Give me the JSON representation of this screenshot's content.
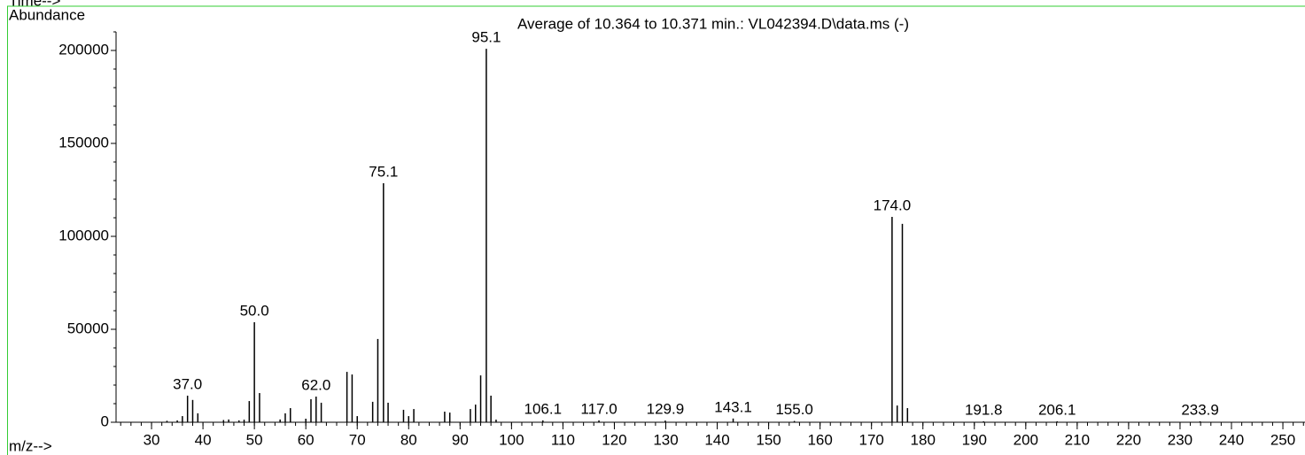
{
  "chart_data": {
    "type": "spectrum",
    "title": "Average of 10.364 to 10.371 min.: VL042394.D\\data.ms (-)",
    "top_label": "Time-->",
    "y_label": "Abundance",
    "x_label": "m/z-->",
    "color": "#000000",
    "frame_color": "#33cc33",
    "x": [
      33,
      35,
      36,
      37.0,
      38,
      39,
      44,
      45,
      47,
      48,
      49,
      50.0,
      51,
      55,
      56,
      57,
      60,
      61,
      62.0,
      63,
      68,
      69,
      70,
      73,
      74,
      75.1,
      76,
      79,
      80,
      81,
      87,
      88,
      92,
      93,
      94,
      95.1,
      96,
      97,
      106.1,
      117.0,
      129.9,
      143.1,
      155.0,
      174.0,
      175,
      176,
      177,
      191.8,
      206.1,
      233.9
    ],
    "values": [
      800,
      1000,
      3300,
      14300,
      12000,
      4800,
      1200,
      1500,
      1000,
      1400,
      11400,
      53800,
      15700,
      1500,
      4800,
      7600,
      1900,
      12400,
      13800,
      10500,
      27100,
      25700,
      3300,
      11000,
      44800,
      128600,
      10500,
      6700,
      3300,
      7100,
      5700,
      5200,
      7100,
      9500,
      25200,
      200900,
      14300,
      1400,
      1000,
      1000,
      900,
      2000,
      700,
      110500,
      9000,
      106700,
      7600,
      500,
      500,
      500
    ],
    "peak_labels": [
      {
        "x": 37.0,
        "label": "37.0"
      },
      {
        "x": 50.0,
        "label": "50.0"
      },
      {
        "x": 62.0,
        "label": "62.0"
      },
      {
        "x": 75.1,
        "label": "75.1"
      },
      {
        "x": 95.1,
        "label": "95.1"
      },
      {
        "x": 106.1,
        "label": "106.1"
      },
      {
        "x": 117.0,
        "label": "117.0"
      },
      {
        "x": 129.9,
        "label": "129.9"
      },
      {
        "x": 143.1,
        "label": "143.1"
      },
      {
        "x": 155.0,
        "label": "155.0"
      },
      {
        "x": 174.0,
        "label": "174.0"
      },
      {
        "x": 191.8,
        "label": "191.8"
      },
      {
        "x": 206.1,
        "label": "206.1"
      },
      {
        "x": 233.9,
        "label": "233.9"
      }
    ],
    "xlim": [
      23.1,
      254.3
    ],
    "ylim": [
      0,
      210000
    ],
    "xticks": [
      30,
      40,
      50,
      60,
      70,
      80,
      90,
      100,
      110,
      120,
      130,
      140,
      150,
      160,
      170,
      180,
      190,
      200,
      210,
      220,
      230,
      240,
      250
    ],
    "yticks": [
      0,
      50000,
      100000,
      150000,
      200000
    ],
    "minor_tick_step": {
      "x": 2,
      "y": 10000
    }
  }
}
